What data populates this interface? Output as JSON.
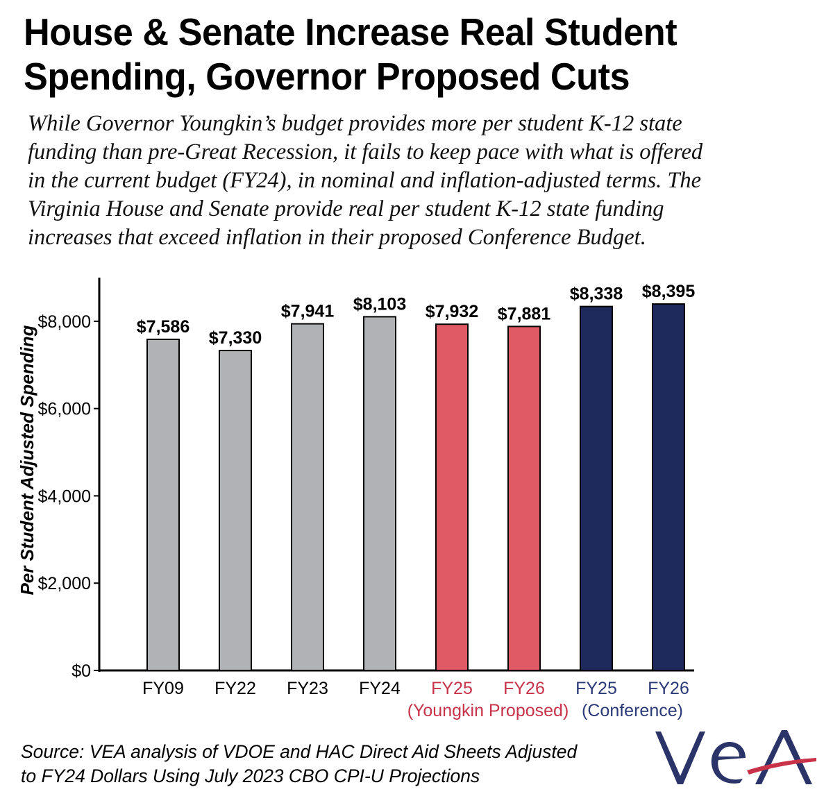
{
  "title_lines": [
    "House & Senate Increase Real Student",
    "Spending, Governor Proposed Cuts"
  ],
  "subtitle_lines": [
    "While Governor Youngkin’s budget provides more per student K-12 state",
    "funding than pre-Great Recession, it fails to keep pace with what is offered",
    "in the current budget (FY24), in nominal and inflation-adjusted terms. The",
    "Virginia House and Senate provide real per student K-12 state funding",
    "increases that exceed inflation in their proposed Conference Budget."
  ],
  "source_lines": [
    "Source: VEA analysis of VDOE and HAC Direct Aid Sheets Adjusted",
    "to FY24 Dollars Using July 2023 CBO CPI-U Projections"
  ],
  "logo_text": "VEA",
  "colors": {
    "gray_bar": "#b1b2b6",
    "red_bar": "#df5a64",
    "navy_bar": "#1f2a5c",
    "red_label": "#c8334a",
    "navy_label": "#2a3a78",
    "logo_navy": "#2b3468",
    "logo_red": "#c8334a"
  },
  "chart_data": {
    "type": "bar",
    "ylabel": "Per Student Adjusted Spending",
    "ylim": [
      0,
      9000
    ],
    "yticks": [
      0,
      2000,
      4000,
      6000,
      8000
    ],
    "ytick_labels": [
      "$0",
      "$2,000",
      "$4,000",
      "$6,000",
      "$8,000"
    ],
    "grid": false,
    "categories": [
      "FY09",
      "FY22",
      "FY23",
      "FY24",
      "FY25",
      "FY26",
      "FY25",
      "FY26"
    ],
    "group_labels": [
      {
        "text": "(Youngkin Proposed)",
        "group": "red"
      },
      {
        "text": "(Conference)",
        "group": "navy"
      }
    ],
    "values": [
      7586,
      7330,
      7941,
      8103,
      7932,
      7881,
      8338,
      8395
    ],
    "value_labels": [
      "$7,586",
      "$7,330",
      "$7,941",
      "$8,103",
      "$7,932",
      "$7,881",
      "$8,338",
      "$8,395"
    ],
    "bar_groups": [
      "gray",
      "gray",
      "gray",
      "gray",
      "red",
      "red",
      "navy",
      "navy"
    ]
  }
}
